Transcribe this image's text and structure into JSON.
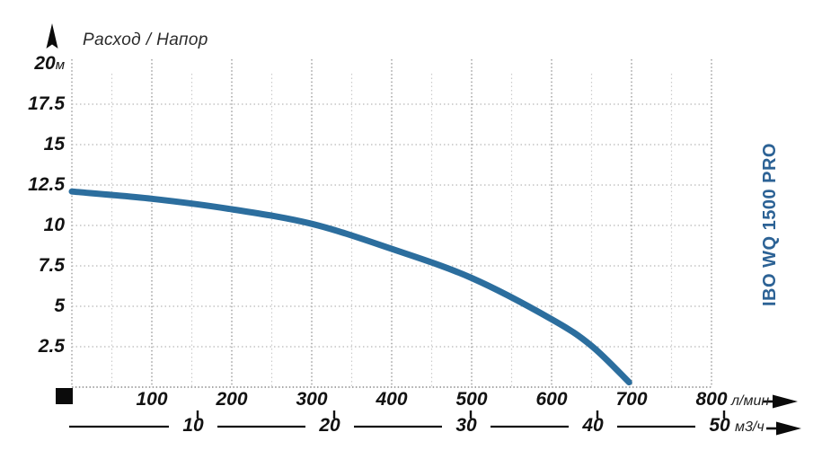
{
  "header": {
    "title": "Расход / Напор"
  },
  "product": {
    "label": "IBO WQ 1500 PRO"
  },
  "axes": {
    "y_unit": "м",
    "x_unit_primary": "л/мин",
    "x_unit_secondary": "м3/ч"
  },
  "chart_data": {
    "type": "line",
    "title": "Расход / Напор",
    "xlabel": "Расход (л/мин ; м3/ч)",
    "ylabel": "Напор (м)",
    "xlim": [
      0,
      800
    ],
    "ylim": [
      0,
      20
    ],
    "grid": true,
    "y_ticks": [
      "20",
      "17.5",
      "15",
      "12.5",
      "10",
      "7.5",
      "5",
      "2.5"
    ],
    "y_tick_values": [
      20,
      17.5,
      15,
      12.5,
      10,
      7.5,
      5,
      2.5
    ],
    "x_ticks_lmin": [
      100,
      200,
      300,
      400,
      500,
      600,
      700,
      800
    ],
    "x_ticks_m3h": [
      10,
      20,
      30,
      40,
      50
    ],
    "series": [
      {
        "name": "IBO WQ 1500 PRO",
        "x_lmin": [
          0,
          100,
          200,
          300,
          400,
          500,
          600,
          650,
          697
        ],
        "head_m": [
          12.1,
          11.65,
          11.0,
          10.1,
          8.55,
          6.75,
          4.2,
          2.55,
          0.3
        ]
      }
    ]
  },
  "colors": {
    "curve": "#2C6E9E",
    "product_label": "#2C6295",
    "grid_major": "#999999",
    "grid_minor": "#cccccc",
    "grid_horizontal": "#b8b8b8",
    "baseline": "#8a8a8a",
    "axis_ink": "#111111",
    "text": "#121212"
  }
}
